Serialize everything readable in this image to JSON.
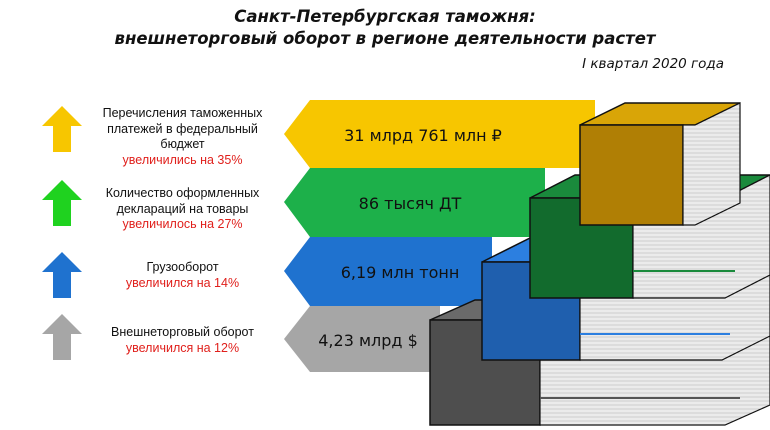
{
  "header": {
    "title_line1": "Санкт-Петербургская таможня:",
    "title_line2": "внешнеторговый оборот в регионе деятельности растет",
    "period": "I квартал 2020 года"
  },
  "items": [
    {
      "label_lines": [
        "Перечисления таможенных",
        "платежей в федеральный",
        "бюджет"
      ],
      "change": "увеличились на 35%",
      "value": "31 млрд 761 млн ₽",
      "band_color": "#f7c600",
      "arrow_color": "#f7c600",
      "arrow_icon": "up-arrow-icon"
    },
    {
      "label_lines": [
        "Количество оформленных",
        "деклараций на товары"
      ],
      "change": "увеличилось на 27%",
      "value": "86 тысяч ДТ",
      "band_color": "#1db04a",
      "arrow_color": "#1fd21f",
      "arrow_icon": "up-arrow-icon"
    },
    {
      "label_lines": [
        "Грузооборот"
      ],
      "change": "увеличился на 14%",
      "value": "6,19 млн тонн",
      "band_color": "#1f72cf",
      "arrow_color": "#1f72cf",
      "arrow_icon": "up-arrow-icon"
    },
    {
      "label_lines": [
        "Внешнеторговый оборот"
      ],
      "change": "увеличился на 12%",
      "value": "4,23 млрд $",
      "band_color": "#a6a6a6",
      "arrow_color": "#a6a6a6",
      "arrow_icon": "up-arrow-icon"
    }
  ]
}
